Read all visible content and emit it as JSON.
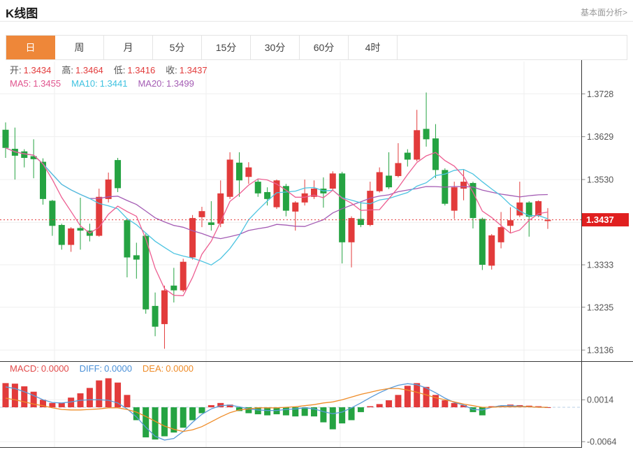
{
  "header": {
    "title": "K线图",
    "link": "基本面分析>"
  },
  "tabs": {
    "items": [
      "日",
      "周",
      "月",
      "5分",
      "15分",
      "30分",
      "60分",
      "4时"
    ],
    "selected_index": 0,
    "selected_bg": "#EE8739"
  },
  "legend": {
    "ohlc": [
      {
        "label": "开:",
        "value": "1.3434"
      },
      {
        "label": "高:",
        "value": "1.3464"
      },
      {
        "label": "低:",
        "value": "1.3416"
      },
      {
        "label": "收:",
        "value": "1.3437"
      }
    ],
    "ohlc_label_color": "#555555",
    "ohlc_value_color": "#E23B3B",
    "ma": [
      {
        "label": "MA5:",
        "value": "1.3455",
        "color": "#E0548E"
      },
      {
        "label": "MA10:",
        "value": "1.3441",
        "color": "#3EC2E0"
      },
      {
        "label": "MA20:",
        "value": "1.3499",
        "color": "#A45CB4"
      }
    ],
    "macd": [
      {
        "label": "MACD:",
        "value": "0.0000",
        "color": "#E24B4B"
      },
      {
        "label": "DIFF:",
        "value": "0.0000",
        "color": "#4A90D8"
      },
      {
        "label": "DEA:",
        "value": "0.0000",
        "color": "#EF8C28"
      }
    ]
  },
  "colors": {
    "up": "#E23B3B",
    "down": "#25A342",
    "ma5": "#ED5F92",
    "ma10": "#4DC4E1",
    "ma20": "#A45CB4",
    "diff_line": "#5A9BD8",
    "dea_line": "#EF8C28",
    "grid": "#EFEFEF",
    "axis": "#333333",
    "tick_text": "#555555",
    "current_price_box": "#E01F1F",
    "current_price_line": "#E23B3B",
    "zero_dash_line": "#B9CFE4",
    "panel_border": "#3A3A3A"
  },
  "chart_data": {
    "type": "candlestick+macd",
    "title": "K线图",
    "grid": true,
    "legend_position": "top-left",
    "price_axis": {
      "side": "right",
      "range": [
        1.3136,
        1.3728
      ],
      "tick_labels": [
        "1.3728",
        "1.3629",
        "1.3530",
        "1.3333",
        "1.3235",
        "1.3136"
      ],
      "tick_values": [
        1.3728,
        1.3629,
        1.353,
        1.3333,
        1.3235,
        1.3136
      ],
      "mid_grid_value": 1.3431,
      "current_price": 1.3437,
      "current_price_label": "1.3437"
    },
    "last_bar": {
      "open": 1.3434,
      "high": 1.3464,
      "low": 1.3416,
      "close": 1.3437
    },
    "ma_periods": [
      5,
      10,
      20
    ],
    "ma_current": {
      "MA5": 1.3455,
      "MA10": 1.3441,
      "MA20": 1.3499
    },
    "candles_format": [
      "open",
      "high",
      "low",
      "close"
    ],
    "candles": [
      [
        1.3645,
        1.3662,
        1.358,
        1.3603
      ],
      [
        1.3601,
        1.365,
        1.353,
        1.3585
      ],
      [
        1.3595,
        1.36,
        1.3558,
        1.358
      ],
      [
        1.3584,
        1.3623,
        1.3533,
        1.3577
      ],
      [
        1.3571,
        1.3579,
        1.3472,
        1.3485
      ],
      [
        1.3481,
        1.3483,
        1.34,
        1.3423
      ],
      [
        1.3425,
        1.3428,
        1.3368,
        1.3379
      ],
      [
        1.3379,
        1.342,
        1.3363,
        1.3417
      ],
      [
        1.3418,
        1.3488,
        1.3368,
        1.3412
      ],
      [
        1.3412,
        1.3428,
        1.3387,
        1.34
      ],
      [
        1.34,
        1.3509,
        1.3398,
        1.349
      ],
      [
        1.3485,
        1.3546,
        1.3477,
        1.353
      ],
      [
        1.3575,
        1.358,
        1.3501,
        1.351
      ],
      [
        1.3436,
        1.344,
        1.3304,
        1.335
      ],
      [
        1.3355,
        1.3384,
        1.3301,
        1.3345
      ],
      [
        1.34,
        1.3405,
        1.322,
        1.323
      ],
      [
        1.3238,
        1.3269,
        1.3168,
        1.319
      ],
      [
        1.3196,
        1.3285,
        1.3139,
        1.3274
      ],
      [
        1.3285,
        1.3326,
        1.3246,
        1.3274
      ],
      [
        1.3274,
        1.3347,
        1.327,
        1.334
      ],
      [
        1.335,
        1.3448,
        1.3345,
        1.3441
      ],
      [
        1.3443,
        1.3467,
        1.342,
        1.3457
      ],
      [
        1.3431,
        1.348,
        1.3412,
        1.3425
      ],
      [
        1.3428,
        1.3528,
        1.342,
        1.3498
      ],
      [
        1.349,
        1.3593,
        1.3485,
        1.3576
      ],
      [
        1.3569,
        1.3593,
        1.349,
        1.3528
      ],
      [
        1.3536,
        1.357,
        1.352,
        1.3558
      ],
      [
        1.3525,
        1.353,
        1.349,
        1.3498
      ],
      [
        1.3501,
        1.3512,
        1.347,
        1.3485
      ],
      [
        1.3466,
        1.353,
        1.3462,
        1.3528
      ],
      [
        1.3515,
        1.352,
        1.3445,
        1.3458
      ],
      [
        1.3456,
        1.348,
        1.3412,
        1.3477
      ],
      [
        1.3477,
        1.353,
        1.347,
        1.3498
      ],
      [
        1.349,
        1.3528,
        1.3485,
        1.3509
      ],
      [
        1.3509,
        1.3535,
        1.3465,
        1.3498
      ],
      [
        1.3509,
        1.3549,
        1.3505,
        1.3544
      ],
      [
        1.3544,
        1.3548,
        1.3336,
        1.3385
      ],
      [
        1.3385,
        1.3445,
        1.3327,
        1.3441
      ],
      [
        1.3439,
        1.3477,
        1.342,
        1.3425
      ],
      [
        1.3425,
        1.3525,
        1.3422,
        1.3504
      ],
      [
        1.3503,
        1.3558,
        1.35,
        1.3547
      ],
      [
        1.3539,
        1.3593,
        1.3508,
        1.3512
      ],
      [
        1.3538,
        1.3614,
        1.3535,
        1.3568
      ],
      [
        1.3592,
        1.36,
        1.356,
        1.3576
      ],
      [
        1.3576,
        1.3691,
        1.3572,
        1.3644
      ],
      [
        1.3647,
        1.3731,
        1.3606,
        1.3623
      ],
      [
        1.3625,
        1.3658,
        1.3533,
        1.3552
      ],
      [
        1.3552,
        1.3556,
        1.347,
        1.3474
      ],
      [
        1.3458,
        1.3525,
        1.3439,
        1.3512
      ],
      [
        1.3509,
        1.3553,
        1.3482,
        1.3525
      ],
      [
        1.3522,
        1.3525,
        1.3417,
        1.3441
      ],
      [
        1.3439,
        1.3442,
        1.3321,
        1.3333
      ],
      [
        1.3331,
        1.3404,
        1.3322,
        1.3401
      ],
      [
        1.3385,
        1.3455,
        1.3371,
        1.342
      ],
      [
        1.3423,
        1.3466,
        1.3407,
        1.3436
      ],
      [
        1.3447,
        1.3525,
        1.3443,
        1.3477
      ],
      [
        1.3477,
        1.348,
        1.3398,
        1.3444
      ],
      [
        1.3447,
        1.3482,
        1.3443,
        1.348
      ],
      [
        1.3434,
        1.3464,
        1.3416,
        1.3437
      ]
    ],
    "macd": {
      "axis_tick_labels": [
        "0.0014",
        "-0.0064"
      ],
      "axis_tick_values": [
        0.0014,
        -0.0064
      ],
      "current": {
        "MACD": 0.0,
        "DIFF": 0.0,
        "DEA": 0.0
      },
      "hist": [
        0.0045,
        0.0044,
        0.0039,
        0.0029,
        0.0014,
        0.0008,
        0.0008,
        0.0018,
        0.0026,
        0.0036,
        0.005,
        0.0054,
        0.0046,
        0.0023,
        -0.0024,
        -0.0056,
        -0.006,
        -0.0054,
        -0.0047,
        -0.0038,
        -0.0024,
        -0.0011,
        0.0004,
        0.0008,
        0.0005,
        -0.0007,
        -0.0011,
        -0.0013,
        -0.0015,
        -0.0013,
        -0.0015,
        -0.0017,
        -0.0016,
        -0.0017,
        -0.0028,
        -0.0041,
        -0.003,
        -0.0024,
        -0.0009,
        0.0002,
        0.0006,
        0.0013,
        0.0023,
        0.004,
        0.0045,
        0.0038,
        0.0023,
        0.0013,
        0.0008,
        0.0004,
        -0.0009,
        -0.0015,
        0.0002,
        0.0003,
        0.0005,
        0.0004,
        0.0003,
        0.0002,
        0.0
      ],
      "diff": [
        0.0038,
        0.0035,
        0.0029,
        0.0022,
        0.0014,
        0.0009,
        0.0008,
        0.001,
        0.0013,
        0.0014,
        0.0014,
        0.0013,
        0.0008,
        -0.0003,
        -0.0018,
        -0.0037,
        -0.0054,
        -0.0061,
        -0.0058,
        -0.0045,
        -0.0028,
        -0.0013,
        -0.0003,
        0.0003,
        0.0004,
        0.0001,
        -0.0003,
        -0.0005,
        -0.0006,
        -0.0006,
        -0.0004,
        -0.0003,
        -0.0001,
        -0.0003,
        -0.0008,
        -0.0012,
        -0.0009,
        -0.0001,
        0.0008,
        0.0018,
        0.0027,
        0.0035,
        0.0041,
        0.0044,
        0.0042,
        0.0036,
        0.0027,
        0.0017,
        0.0009,
        0.0004,
        -0.0004,
        -0.0005,
        0.0,
        0.0003,
        0.0003,
        0.0002,
        0.0001,
        0.0,
        0.0
      ],
      "dea": [
        0.0017,
        0.0014,
        0.001,
        0.0006,
        0.0003,
        -0.0001,
        -0.0004,
        -0.0005,
        -0.0005,
        -0.0004,
        -0.0003,
        -0.0001,
        -0.0001,
        -0.0004,
        -0.0009,
        -0.0017,
        -0.0026,
        -0.0035,
        -0.0041,
        -0.0045,
        -0.0042,
        -0.0036,
        -0.0027,
        -0.0018,
        -0.001,
        -0.0005,
        -0.0003,
        -0.0001,
        -0.0001,
        -0.0001,
        0.0,
        0.0001,
        0.0003,
        0.0005,
        0.0008,
        0.001,
        0.0014,
        0.0019,
        0.0024,
        0.0028,
        0.0032,
        0.0035,
        0.0035,
        0.0032,
        0.0028,
        0.0023,
        0.0018,
        0.0014,
        0.001,
        0.0006,
        0.0003,
        0.0,
        0.0,
        0.0001,
        0.0001,
        0.0001,
        0.0001,
        0.0,
        0.0
      ]
    }
  }
}
